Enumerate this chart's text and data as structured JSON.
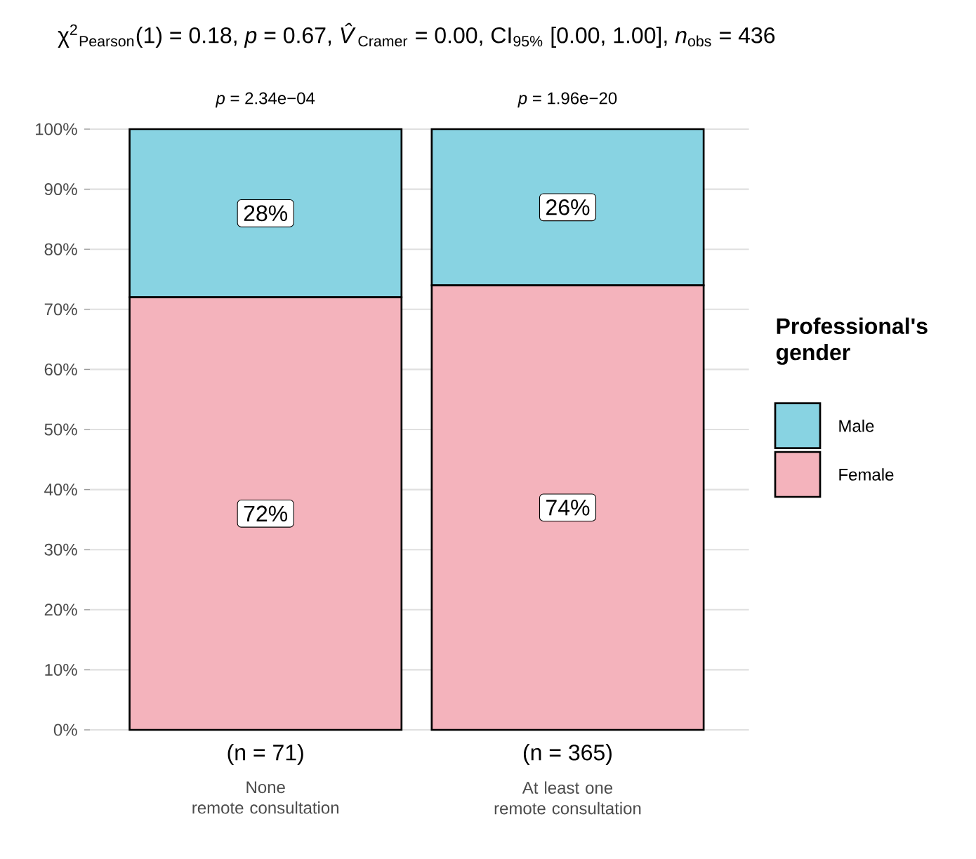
{
  "chart_data": {
    "type": "bar",
    "stacked": true,
    "title": "χ$^{2}$$_{Pearson}$(1) = 0.18, *p* = 0.67, *V̂*$_{Cramer}$ = 0.00, CI$_{95%}$ [0.00, 1.00], *n*$_{obs}$ = 436",
    "categories": [
      "None\nremote consultation",
      "At least one\nremote consultation"
    ],
    "series": [
      {
        "name": "Female",
        "color": "#f4b3bc",
        "values": [
          72,
          74
        ],
        "value_labels": [
          "72%",
          "74%"
        ]
      },
      {
        "name": "Male",
        "color": "#88d3e2",
        "values": [
          28,
          26
        ],
        "value_labels": [
          "28%",
          "26%"
        ]
      }
    ],
    "legend_title": "Professional's gender",
    "legend": "right",
    "grid": "y",
    "ylim": [
      0,
      100
    ],
    "yticks": [
      {
        "value": 0,
        "label": "0%"
      },
      {
        "value": 10,
        "label": "10%"
      },
      {
        "value": 20,
        "label": "20%"
      },
      {
        "value": 30,
        "label": "30%"
      },
      {
        "value": 40,
        "label": "40%"
      },
      {
        "value": 50,
        "label": "50%"
      },
      {
        "value": 60,
        "label": "60%"
      },
      {
        "value": 70,
        "label": "70%"
      },
      {
        "value": 80,
        "label": "80%"
      },
      {
        "value": 90,
        "label": "90%"
      },
      {
        "value": 100,
        "label": "100%"
      }
    ],
    "annotations": [
      {
        "text": "*p* = 2.34e−04",
        "x": "None\nremote consultation",
        "y": 100
      },
      {
        "text": "*p* = 1.96e−20",
        "x": "At least one\nremote consultation",
        "y": 100
      },
      "(n = 71)",
      "(n = 365)"
    ]
  }
}
